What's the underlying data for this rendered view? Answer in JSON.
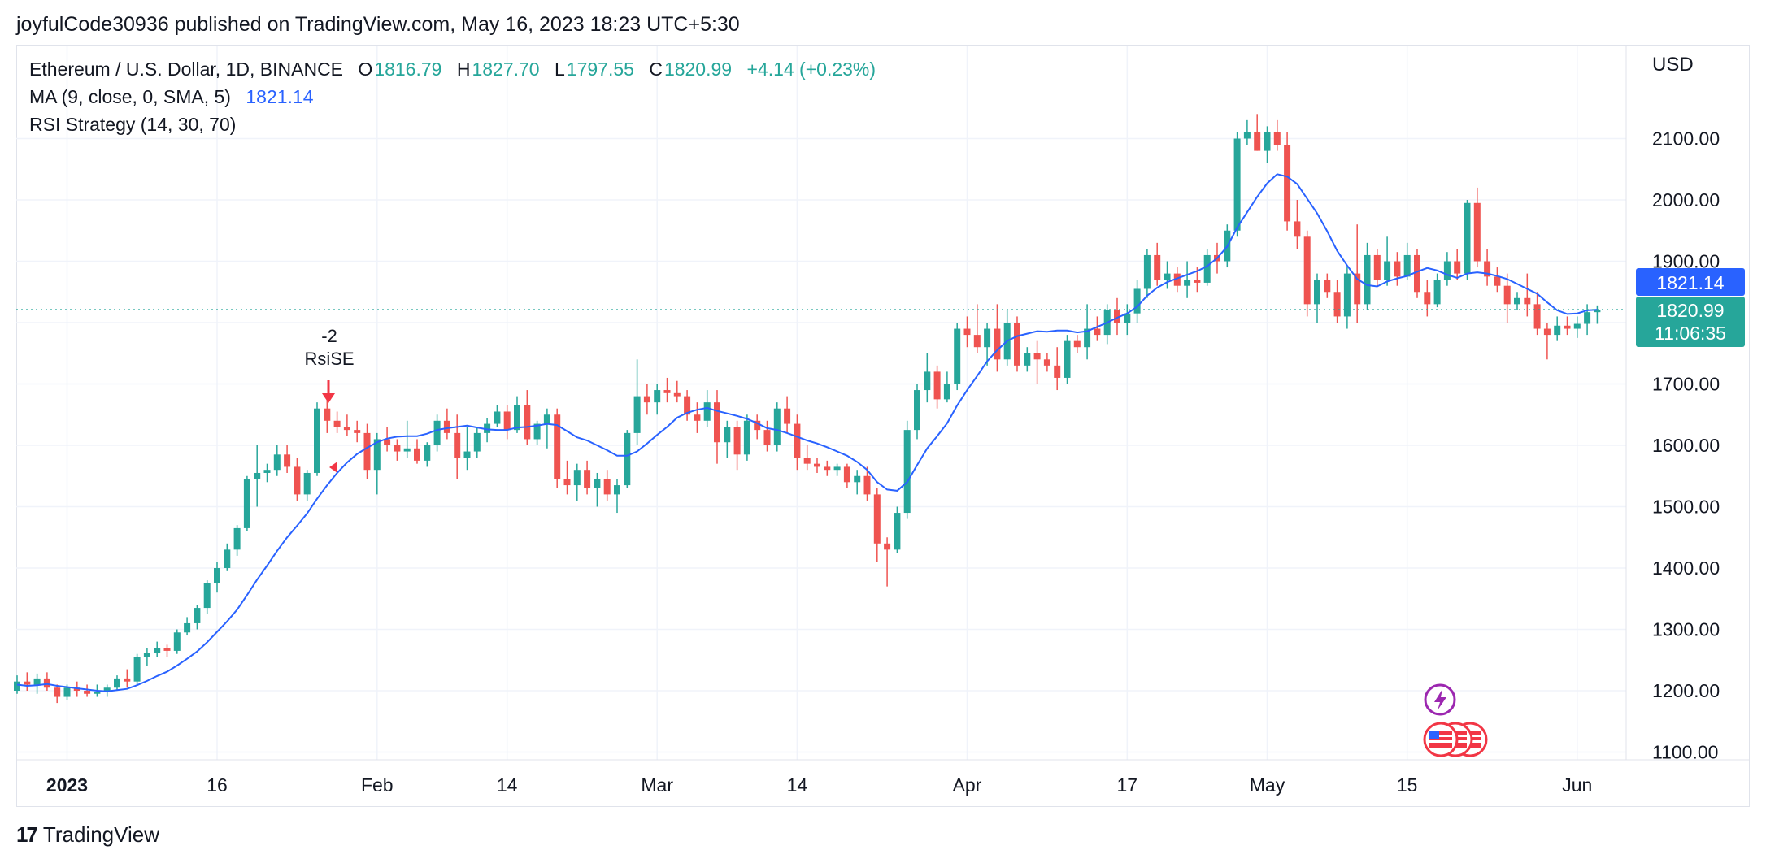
{
  "header": {
    "published_line": "joyfulCode30936 published on TradingView.com, May 16, 2023 18:23 UTC+5:30"
  },
  "legend": {
    "symbol": "Ethereum / U.S. Dollar, 1D, BINANCE",
    "o_label": "O",
    "o_value": "1816.79",
    "h_label": "H",
    "h_value": "1827.70",
    "l_label": "L",
    "l_value": "1797.55",
    "c_label": "C",
    "c_value": "1820.99",
    "change": "+4.14 (+0.23%)",
    "ma_label": "MA (9, close, 0, SMA, 5)",
    "ma_value": "1821.14",
    "rsi_label": "RSI Strategy (14, 30, 70)"
  },
  "currency": "USD",
  "price_tags": {
    "ma": "1821.14",
    "last": "1820.99",
    "countdown": "11:06:35"
  },
  "signal": {
    "count": "-2",
    "name": "RsiSE"
  },
  "footer": {
    "brand": "TradingView",
    "logo_text": "17"
  },
  "colors": {
    "up": "#26a69a",
    "down": "#ef5350",
    "ma": "#2962ff",
    "grid": "#f0f3fa",
    "tag_blue": "#2962ff",
    "tag_green": "#26a69a"
  },
  "icons": [
    "lightning-event-icon",
    "us-flag-event-icon"
  ],
  "chart_data": {
    "type": "candlestick",
    "title": "Ethereum / U.S. Dollar, 1D, BINANCE",
    "ylabel": "USD",
    "ylim": [
      1080,
      2250
    ],
    "y_ticks": [
      1100,
      1200,
      1300,
      1400,
      1500,
      1600,
      1700,
      1800,
      1900,
      2000,
      2100
    ],
    "y_tick_labels": [
      "1100.00",
      "1200.00",
      "1300.00",
      "1400.00",
      "1500.00",
      "1600.00",
      "1700.00",
      "1800.00",
      "1900.00",
      "2000.00",
      "2100.00"
    ],
    "x_ticks": [
      {
        "label": "2023",
        "day": 5,
        "bold": true
      },
      {
        "label": "16",
        "day": 20
      },
      {
        "label": "Feb",
        "day": 36
      },
      {
        "label": "14",
        "day": 49
      },
      {
        "label": "Mar",
        "day": 64
      },
      {
        "label": "14",
        "day": 78
      },
      {
        "label": "Apr",
        "day": 95
      },
      {
        "label": "17",
        "day": 111
      },
      {
        "label": "May",
        "day": 125
      },
      {
        "label": "15",
        "day": 139
      },
      {
        "label": "Jun",
        "day": 156
      }
    ],
    "first_date": "2022-12-27",
    "ohlc": [
      [
        1200,
        1225,
        1195,
        1215
      ],
      [
        1215,
        1230,
        1200,
        1210
      ],
      [
        1210,
        1228,
        1195,
        1220
      ],
      [
        1220,
        1230,
        1200,
        1205
      ],
      [
        1205,
        1210,
        1180,
        1190
      ],
      [
        1190,
        1210,
        1185,
        1205
      ],
      [
        1205,
        1215,
        1190,
        1200
      ],
      [
        1200,
        1210,
        1190,
        1195
      ],
      [
        1195,
        1210,
        1190,
        1198
      ],
      [
        1198,
        1210,
        1190,
        1205
      ],
      [
        1205,
        1225,
        1200,
        1220
      ],
      [
        1220,
        1235,
        1205,
        1215
      ],
      [
        1215,
        1260,
        1210,
        1255
      ],
      [
        1255,
        1270,
        1240,
        1262
      ],
      [
        1262,
        1280,
        1255,
        1270
      ],
      [
        1270,
        1275,
        1255,
        1265
      ],
      [
        1265,
        1300,
        1260,
        1295
      ],
      [
        1295,
        1320,
        1290,
        1310
      ],
      [
        1310,
        1340,
        1300,
        1335
      ],
      [
        1335,
        1380,
        1325,
        1375
      ],
      [
        1375,
        1410,
        1360,
        1400
      ],
      [
        1400,
        1440,
        1395,
        1430
      ],
      [
        1430,
        1470,
        1420,
        1465
      ],
      [
        1465,
        1550,
        1460,
        1545
      ],
      [
        1545,
        1600,
        1500,
        1555
      ],
      [
        1555,
        1570,
        1540,
        1560
      ],
      [
        1560,
        1600,
        1550,
        1585
      ],
      [
        1585,
        1600,
        1555,
        1565
      ],
      [
        1565,
        1580,
        1510,
        1520
      ],
      [
        1520,
        1560,
        1510,
        1555
      ],
      [
        1555,
        1670,
        1550,
        1660
      ],
      [
        1660,
        1680,
        1620,
        1640
      ],
      [
        1640,
        1655,
        1620,
        1630
      ],
      [
        1630,
        1650,
        1615,
        1625
      ],
      [
        1625,
        1640,
        1605,
        1620
      ],
      [
        1620,
        1635,
        1545,
        1560
      ],
      [
        1560,
        1620,
        1520,
        1610
      ],
      [
        1610,
        1630,
        1590,
        1600
      ],
      [
        1600,
        1610,
        1575,
        1590
      ],
      [
        1590,
        1640,
        1580,
        1595
      ],
      [
        1595,
        1610,
        1570,
        1575
      ],
      [
        1575,
        1605,
        1565,
        1600
      ],
      [
        1600,
        1650,
        1590,
        1640
      ],
      [
        1640,
        1660,
        1610,
        1620
      ],
      [
        1620,
        1650,
        1545,
        1580
      ],
      [
        1580,
        1630,
        1560,
        1590
      ],
      [
        1590,
        1630,
        1580,
        1620
      ],
      [
        1620,
        1645,
        1605,
        1635
      ],
      [
        1635,
        1665,
        1630,
        1655
      ],
      [
        1655,
        1665,
        1610,
        1625
      ],
      [
        1625,
        1680,
        1620,
        1665
      ],
      [
        1665,
        1690,
        1600,
        1610
      ],
      [
        1610,
        1640,
        1600,
        1635
      ],
      [
        1635,
        1660,
        1595,
        1650
      ],
      [
        1650,
        1660,
        1530,
        1545
      ],
      [
        1545,
        1575,
        1520,
        1535
      ],
      [
        1535,
        1570,
        1510,
        1560
      ],
      [
        1560,
        1575,
        1520,
        1530
      ],
      [
        1530,
        1555,
        1500,
        1545
      ],
      [
        1545,
        1560,
        1510,
        1520
      ],
      [
        1520,
        1545,
        1490,
        1535
      ],
      [
        1535,
        1625,
        1530,
        1620
      ],
      [
        1620,
        1740,
        1600,
        1680
      ],
      [
        1680,
        1700,
        1650,
        1670
      ],
      [
        1670,
        1700,
        1650,
        1690
      ],
      [
        1690,
        1710,
        1670,
        1685
      ],
      [
        1685,
        1705,
        1670,
        1680
      ],
      [
        1680,
        1690,
        1640,
        1650
      ],
      [
        1650,
        1670,
        1620,
        1640
      ],
      [
        1640,
        1690,
        1630,
        1670
      ],
      [
        1670,
        1690,
        1570,
        1605
      ],
      [
        1605,
        1640,
        1580,
        1630
      ],
      [
        1630,
        1640,
        1560,
        1585
      ],
      [
        1585,
        1650,
        1575,
        1640
      ],
      [
        1640,
        1650,
        1610,
        1625
      ],
      [
        1625,
        1640,
        1590,
        1600
      ],
      [
        1600,
        1670,
        1590,
        1660
      ],
      [
        1660,
        1680,
        1620,
        1635
      ],
      [
        1635,
        1650,
        1560,
        1580
      ],
      [
        1580,
        1600,
        1560,
        1570
      ],
      [
        1570,
        1580,
        1555,
        1565
      ],
      [
        1565,
        1575,
        1550,
        1560
      ],
      [
        1560,
        1570,
        1550,
        1565
      ],
      [
        1565,
        1570,
        1530,
        1540
      ],
      [
        1540,
        1560,
        1520,
        1550
      ],
      [
        1550,
        1565,
        1510,
        1520
      ],
      [
        1520,
        1530,
        1410,
        1440
      ],
      [
        1440,
        1450,
        1370,
        1430
      ],
      [
        1430,
        1500,
        1425,
        1490
      ],
      [
        1490,
        1640,
        1480,
        1625
      ],
      [
        1625,
        1700,
        1610,
        1690
      ],
      [
        1690,
        1750,
        1670,
        1720
      ],
      [
        1720,
        1730,
        1660,
        1675
      ],
      [
        1675,
        1720,
        1670,
        1700
      ],
      [
        1700,
        1800,
        1690,
        1790
      ],
      [
        1790,
        1810,
        1760,
        1780
      ],
      [
        1780,
        1830,
        1750,
        1760
      ],
      [
        1760,
        1800,
        1730,
        1790
      ],
      [
        1790,
        1830,
        1720,
        1740
      ],
      [
        1740,
        1820,
        1730,
        1800
      ],
      [
        1800,
        1810,
        1720,
        1730
      ],
      [
        1730,
        1760,
        1720,
        1750
      ],
      [
        1750,
        1770,
        1700,
        1740
      ],
      [
        1740,
        1750,
        1720,
        1730
      ],
      [
        1730,
        1760,
        1690,
        1710
      ],
      [
        1710,
        1780,
        1700,
        1770
      ],
      [
        1770,
        1780,
        1750,
        1760
      ],
      [
        1760,
        1830,
        1740,
        1790
      ],
      [
        1790,
        1810,
        1770,
        1780
      ],
      [
        1780,
        1830,
        1765,
        1820
      ],
      [
        1820,
        1840,
        1780,
        1800
      ],
      [
        1800,
        1830,
        1780,
        1815
      ],
      [
        1815,
        1870,
        1800,
        1855
      ],
      [
        1855,
        1920,
        1840,
        1910
      ],
      [
        1910,
        1930,
        1860,
        1870
      ],
      [
        1870,
        1900,
        1855,
        1880
      ],
      [
        1880,
        1890,
        1850,
        1860
      ],
      [
        1860,
        1900,
        1840,
        1870
      ],
      [
        1870,
        1890,
        1850,
        1865
      ],
      [
        1865,
        1920,
        1860,
        1910
      ],
      [
        1910,
        1930,
        1880,
        1900
      ],
      [
        1900,
        1960,
        1890,
        1950
      ],
      [
        1950,
        2110,
        1940,
        2100
      ],
      [
        2100,
        2130,
        2090,
        2110
      ],
      [
        2110,
        2140,
        2080,
        2080
      ],
      [
        2080,
        2120,
        2060,
        2110
      ],
      [
        2110,
        2130,
        2080,
        2090
      ],
      [
        2090,
        2110,
        1950,
        1965
      ],
      [
        1965,
        2000,
        1920,
        1940
      ],
      [
        1940,
        1950,
        1810,
        1830
      ],
      [
        1830,
        1880,
        1800,
        1870
      ],
      [
        1870,
        1880,
        1840,
        1850
      ],
      [
        1850,
        1870,
        1800,
        1810
      ],
      [
        1810,
        1890,
        1790,
        1880
      ],
      [
        1880,
        1960,
        1800,
        1830
      ],
      [
        1830,
        1930,
        1820,
        1910
      ],
      [
        1910,
        1920,
        1860,
        1870
      ],
      [
        1870,
        1940,
        1860,
        1900
      ],
      [
        1900,
        1915,
        1860,
        1875
      ],
      [
        1875,
        1930,
        1870,
        1910
      ],
      [
        1910,
        1920,
        1840,
        1850
      ],
      [
        1850,
        1870,
        1810,
        1830
      ],
      [
        1830,
        1880,
        1825,
        1870
      ],
      [
        1870,
        1915,
        1860,
        1900
      ],
      [
        1900,
        1920,
        1870,
        1880
      ],
      [
        1880,
        2000,
        1870,
        1995
      ],
      [
        1995,
        2020,
        1890,
        1900
      ],
      [
        1900,
        1920,
        1860,
        1875
      ],
      [
        1875,
        1890,
        1850,
        1860
      ],
      [
        1860,
        1880,
        1800,
        1830
      ],
      [
        1830,
        1850,
        1820,
        1840
      ],
      [
        1840,
        1880,
        1810,
        1830
      ],
      [
        1830,
        1850,
        1780,
        1790
      ],
      [
        1790,
        1800,
        1740,
        1780
      ],
      [
        1780,
        1810,
        1770,
        1795
      ],
      [
        1795,
        1810,
        1780,
        1790
      ],
      [
        1790,
        1810,
        1775,
        1798
      ],
      [
        1798,
        1830,
        1780,
        1817
      ],
      [
        1817,
        1828,
        1798,
        1821
      ]
    ],
    "ma": [
      1210,
      1208,
      1209,
      1211,
      1208,
      1206,
      1204,
      1202,
      1200,
      1199,
      1201,
      1203,
      1209,
      1216,
      1224,
      1231,
      1241,
      1252,
      1264,
      1279,
      1296,
      1313,
      1332,
      1356,
      1381,
      1404,
      1428,
      1450,
      1469,
      1489,
      1513,
      1535,
      1555,
      1572,
      1586,
      1596,
      1605,
      1611,
      1614,
      1615,
      1615,
      1619,
      1625,
      1628,
      1630,
      1632,
      1629,
      1626,
      1625,
      1625,
      1629,
      1630,
      1632,
      1635,
      1633,
      1623,
      1613,
      1608,
      1600,
      1592,
      1583,
      1583,
      1590,
      1603,
      1617,
      1630,
      1645,
      1653,
      1658,
      1661,
      1656,
      1652,
      1648,
      1643,
      1636,
      1628,
      1625,
      1620,
      1614,
      1608,
      1603,
      1597,
      1590,
      1583,
      1573,
      1560,
      1540,
      1528,
      1526,
      1540,
      1568,
      1595,
      1615,
      1636,
      1665,
      1690,
      1713,
      1737,
      1755,
      1770,
      1778,
      1782,
      1786,
      1785,
      1787,
      1787,
      1784,
      1786,
      1793,
      1800,
      1808,
      1815,
      1826,
      1844,
      1857,
      1866,
      1872,
      1878,
      1884,
      1892,
      1905,
      1924,
      1955,
      1980,
      2005,
      2027,
      2042,
      2038,
      2026,
      2002,
      1978,
      1949,
      1917,
      1893,
      1871,
      1861,
      1859,
      1867,
      1872,
      1876,
      1883,
      1889,
      1885,
      1878,
      1873,
      1880,
      1882,
      1880,
      1876,
      1871,
      1863,
      1855,
      1847,
      1833,
      1820,
      1814,
      1815,
      1820,
      1821
    ]
  }
}
